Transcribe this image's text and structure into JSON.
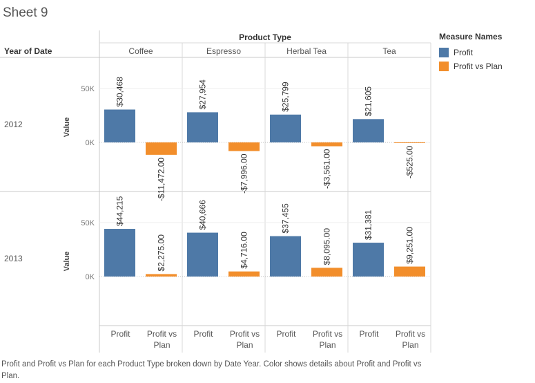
{
  "sheet_title": "Sheet 9",
  "caption": "Profit and Profit vs Plan for each Product Type broken down by Date Year.  Color shows details about Profit and Profit vs Plan.",
  "legend": {
    "title": "Measure Names",
    "items": [
      {
        "label": "Profit",
        "color": "#4e79a7"
      },
      {
        "label": "Profit vs Plan",
        "color": "#f28e2b"
      }
    ]
  },
  "chart_data": {
    "type": "bar",
    "column_header": "Product Type",
    "row_header": "Year of Date",
    "y_axis_label": "Value",
    "y_ticks": [
      {
        "value": 0,
        "label": "0K"
      },
      {
        "value": 50000,
        "label": "50K"
      }
    ],
    "ylim": [
      -33000,
      75000
    ],
    "product_types": [
      "Coffee",
      "Espresso",
      "Herbal Tea",
      "Tea"
    ],
    "measures": [
      "Profit",
      "Profit vs Plan"
    ],
    "x_labels": [
      [
        "Profit"
      ],
      [
        "Profit vs",
        "Plan"
      ]
    ],
    "colors": {
      "Profit": "#4e79a7",
      "Profit vs Plan": "#f28e2b"
    },
    "rows": [
      {
        "year": "2012",
        "cells": [
          {
            "product": "Coffee",
            "values": [
              30468,
              -11472
            ],
            "labels": [
              "$30,468",
              "-$11,472.00"
            ]
          },
          {
            "product": "Espresso",
            "values": [
              27954,
              -7996
            ],
            "labels": [
              "$27,954",
              "-$7,996.00"
            ]
          },
          {
            "product": "Herbal Tea",
            "values": [
              25799,
              -3561
            ],
            "labels": [
              "$25,799",
              "-$3,561.00"
            ]
          },
          {
            "product": "Tea",
            "values": [
              21605,
              -525
            ],
            "labels": [
              "$21,605",
              "-$525.00"
            ]
          }
        ]
      },
      {
        "year": "2013",
        "cells": [
          {
            "product": "Coffee",
            "values": [
              44215,
              2275
            ],
            "labels": [
              "$44,215",
              "$2,275.00"
            ]
          },
          {
            "product": "Espresso",
            "values": [
              40666,
              4716
            ],
            "labels": [
              "$40,666",
              "$4,716.00"
            ]
          },
          {
            "product": "Herbal Tea",
            "values": [
              37455,
              8095
            ],
            "labels": [
              "$37,455",
              "$8,095.00"
            ]
          },
          {
            "product": "Tea",
            "values": [
              31381,
              9251
            ],
            "labels": [
              "$31,381",
              "$9,251.00"
            ]
          }
        ]
      }
    ]
  }
}
